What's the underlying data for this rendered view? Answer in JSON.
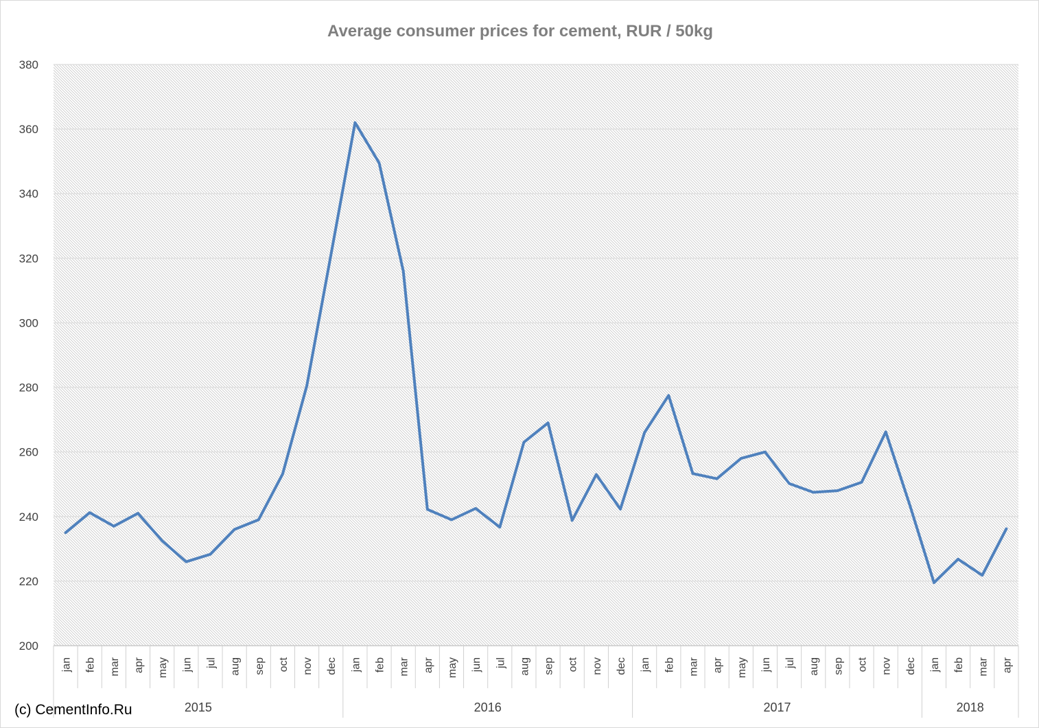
{
  "chart_data": {
    "type": "line",
    "title": "Average consumer prices for cement, RUR / 50kg",
    "ylim": [
      200,
      380
    ],
    "yticks": [
      200,
      220,
      240,
      260,
      280,
      300,
      320,
      340,
      360,
      380
    ],
    "grid": true,
    "legend": "none",
    "categories": [
      "jan",
      "feb",
      "mar",
      "apr",
      "may",
      "jun",
      "jul",
      "aug",
      "sep",
      "oct",
      "nov",
      "dec",
      "jan",
      "feb",
      "mar",
      "apr",
      "may",
      "jun",
      "jul",
      "aug",
      "sep",
      "oct",
      "nov",
      "dec",
      "jan",
      "feb",
      "mar",
      "apr",
      "may",
      "jun",
      "jul",
      "aug",
      "sep",
      "oct",
      "nov",
      "dec",
      "jan",
      "feb",
      "mar",
      "apr"
    ],
    "years": [
      {
        "label": "2015",
        "start": 0,
        "count": 12
      },
      {
        "label": "2016",
        "start": 12,
        "count": 12
      },
      {
        "label": "2017",
        "start": 24,
        "count": 12
      },
      {
        "label": "2018",
        "start": 36,
        "count": 4
      }
    ],
    "series": [
      {
        "color": "#4f81bd",
        "values": [
          235,
          241.2,
          237,
          241,
          232.5,
          226,
          228.3,
          236,
          239,
          253.2,
          280.5,
          321,
          362,
          349.5,
          316,
          242.2,
          239,
          242.5,
          236.7,
          263,
          269,
          238.8,
          253,
          242.3,
          266,
          277.5,
          253.3,
          251.7,
          258,
          260,
          250.2,
          247.5,
          248,
          250.6,
          266.2,
          243.5,
          219.5,
          226.8,
          221.8,
          236.2
        ]
      }
    ]
  },
  "footer": {
    "copyright": "(c) CementInfo.Ru"
  }
}
